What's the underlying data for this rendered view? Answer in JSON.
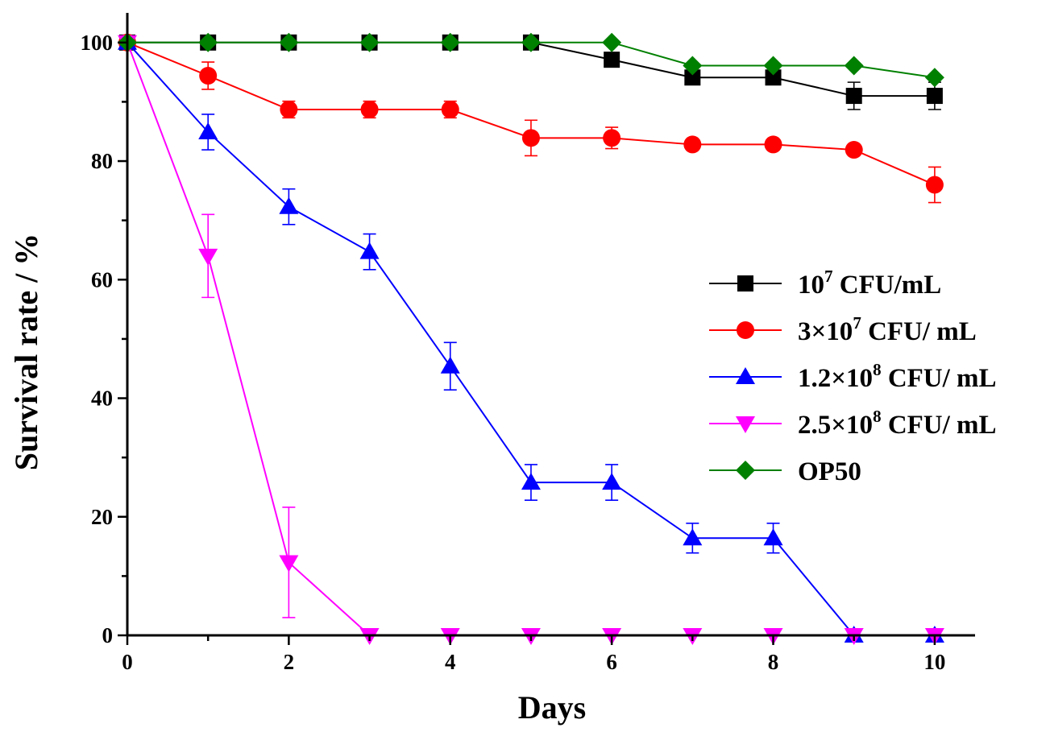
{
  "chart_data": {
    "type": "line",
    "xlabel": "Days",
    "ylabel": "Survival rate / %",
    "xlim": [
      0,
      10.5
    ],
    "ylim": [
      0,
      105
    ],
    "xticks": [
      0,
      2,
      4,
      6,
      8,
      10
    ],
    "yticks": [
      0,
      20,
      40,
      60,
      80,
      100
    ],
    "grid": false,
    "legend_position": "center-right",
    "x": [
      0,
      1,
      2,
      3,
      4,
      5,
      6,
      7,
      8,
      9,
      10
    ],
    "series": [
      {
        "name": "10^7 CFU/mL",
        "label_parts": [
          "10",
          "7",
          " CFU/mL"
        ],
        "color": "#000000",
        "marker": "square",
        "values": [
          100,
          100,
          100,
          100,
          100,
          100,
          97.1,
          94.1,
          94.1,
          91.0,
          91.0
        ],
        "errors": [
          0,
          0,
          0,
          0,
          0,
          0,
          0.8,
          0.8,
          0.8,
          2.3,
          2.3
        ]
      },
      {
        "name": "3×10^7 CFU/ mL",
        "label_parts": [
          "3×10",
          "7",
          " CFU/ mL"
        ],
        "color": "#ff0000",
        "marker": "circle",
        "values": [
          100,
          94.4,
          88.7,
          88.7,
          88.7,
          83.9,
          83.9,
          82.8,
          82.8,
          81.9,
          76.0
        ],
        "errors": [
          0,
          2.3,
          1.4,
          1.4,
          1.4,
          3.0,
          1.8,
          0.5,
          0.5,
          0.5,
          3.0
        ]
      },
      {
        "name": "1.2×10^8 CFU/ mL",
        "label_parts": [
          "1.2×10",
          "8",
          " CFU/ mL"
        ],
        "color": "#0000ff",
        "marker": "triangle-up",
        "values": [
          100,
          84.9,
          72.3,
          64.7,
          45.4,
          25.8,
          25.8,
          16.4,
          16.4,
          0,
          0
        ],
        "errors": [
          0,
          3.0,
          3.0,
          3.0,
          4.0,
          3.0,
          3.0,
          2.5,
          2.5,
          0,
          0
        ]
      },
      {
        "name": "2.5×10^8 CFU/ mL",
        "label_parts": [
          "2.5×10",
          "8",
          " CFU/ mL"
        ],
        "color": "#ff00ff",
        "marker": "triangle-down",
        "values": [
          100,
          64.0,
          12.3,
          0,
          0,
          0,
          0,
          0,
          0,
          0,
          0
        ],
        "errors": [
          0,
          7.0,
          9.3,
          0,
          0,
          0,
          0,
          0,
          0,
          0,
          0
        ]
      },
      {
        "name": "OP50",
        "label_parts": [
          "OP50",
          "",
          ""
        ],
        "color": "#008000",
        "marker": "diamond",
        "values": [
          100,
          100,
          100,
          100,
          100,
          100,
          100,
          96.1,
          96.1,
          96.1,
          94.1
        ],
        "errors": [
          0,
          0,
          0,
          0,
          0,
          0,
          0,
          0,
          0,
          0,
          0
        ]
      }
    ]
  }
}
